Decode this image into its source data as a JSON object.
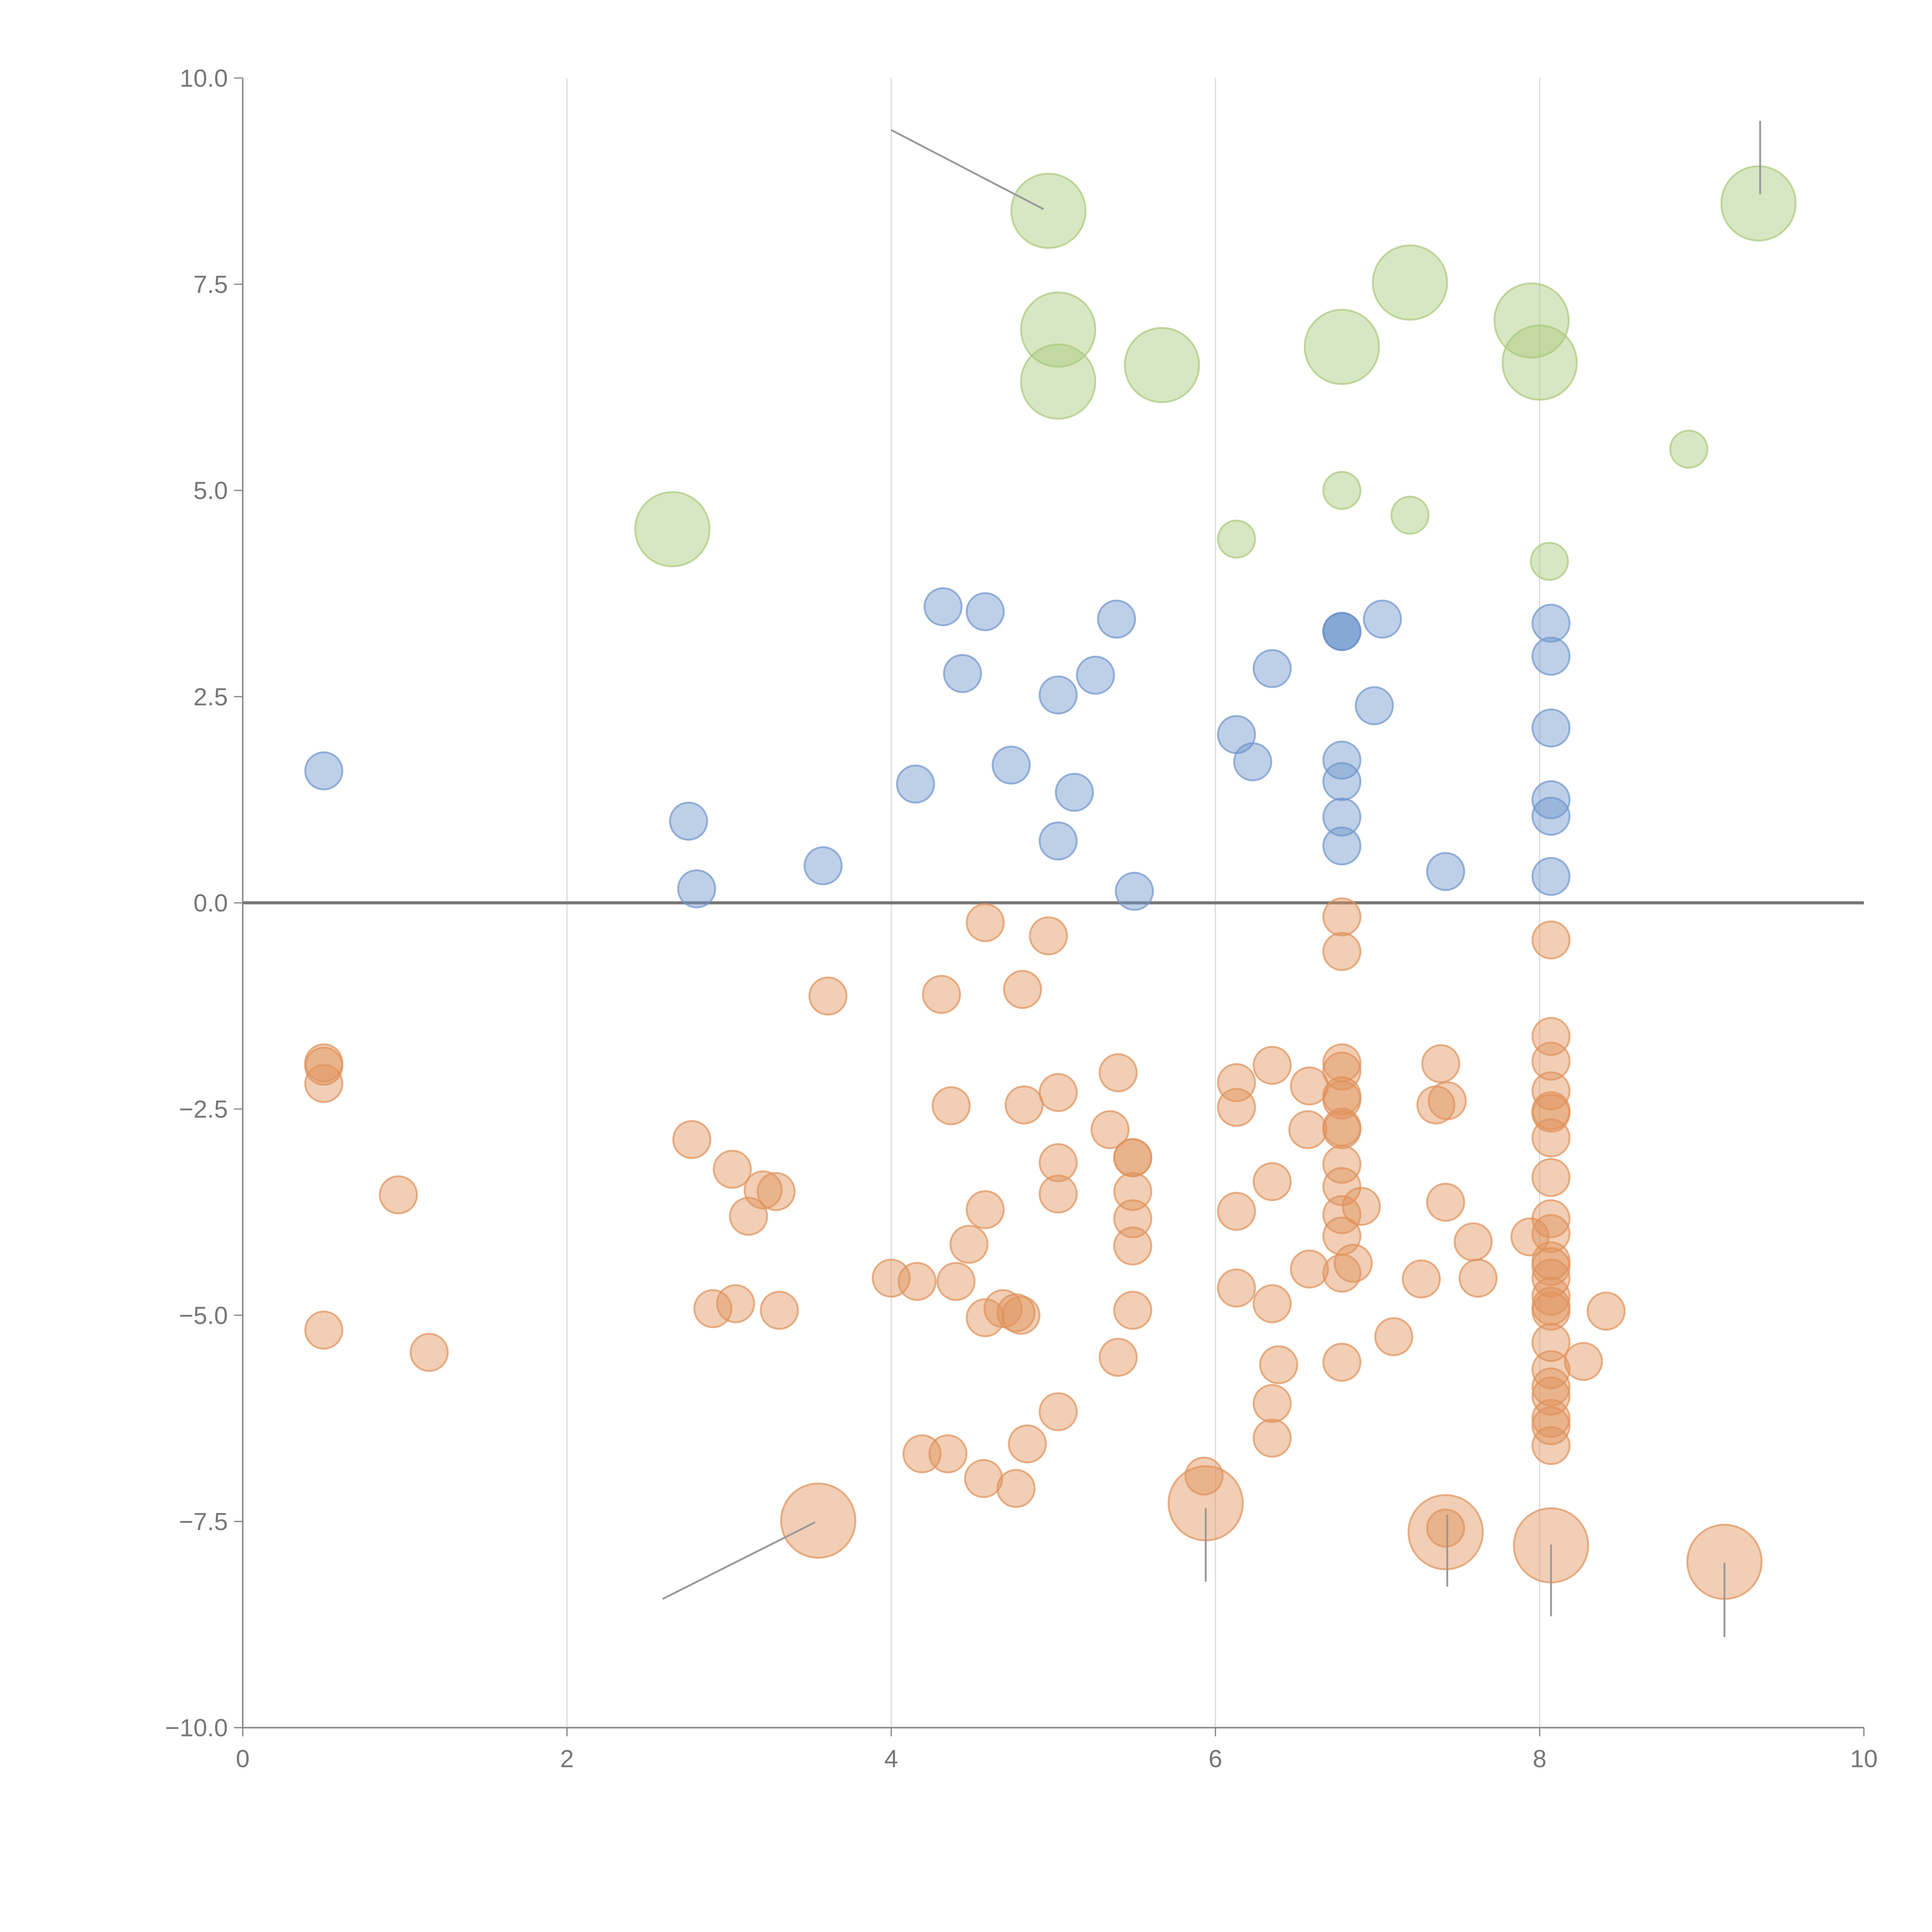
{
  "chart_data": {
    "type": "scatter",
    "title": "",
    "xlabel": "",
    "ylabel": "",
    "xlim": [
      0,
      10
    ],
    "ylim": [
      -10,
      10
    ],
    "xticks": [
      "0",
      "2",
      "4",
      "6",
      "8",
      "10"
    ],
    "yticks": [
      "10.0",
      "7.5",
      "5.0",
      "2.5",
      "0.0",
      "−2.5",
      "−5.0",
      "−7.5",
      "−10.0"
    ],
    "xtick_values": [
      0,
      2,
      4,
      6,
      8,
      10
    ],
    "ytick_values": [
      10,
      7.5,
      5,
      2.5,
      0,
      -2.5,
      -5,
      -7.5,
      -10
    ],
    "vertical_gridlines": [
      2,
      4,
      6,
      8
    ],
    "reference_line_y": 0,
    "series": [
      {
        "name": "green",
        "color": "#a9c97a",
        "points": [
          [
            4.97,
            8.39,
            4
          ],
          [
            5.03,
            6.95,
            4
          ],
          [
            5.03,
            6.32,
            4
          ],
          [
            5.67,
            6.52,
            4
          ],
          [
            6.78,
            6.74,
            4
          ],
          [
            7.2,
            7.52,
            4
          ],
          [
            7.95,
            7.06,
            4
          ],
          [
            8.0,
            6.55,
            4
          ],
          [
            9.35,
            8.48,
            4
          ],
          [
            2.65,
            4.53,
            4
          ],
          [
            8.92,
            5.5,
            1
          ],
          [
            6.78,
            5.0,
            1
          ],
          [
            7.2,
            4.7,
            1
          ],
          [
            6.13,
            4.41,
            1
          ],
          [
            8.06,
            4.14,
            1
          ]
        ]
      },
      {
        "name": "blue",
        "color": "#6f96cc",
        "points": [
          [
            0.5,
            1.6,
            1
          ],
          [
            2.75,
            0.99,
            1
          ],
          [
            2.8,
            0.17,
            1
          ],
          [
            3.58,
            0.45,
            1
          ],
          [
            4.15,
            1.44,
            1
          ],
          [
            4.32,
            3.59,
            1
          ],
          [
            4.44,
            2.78,
            1
          ],
          [
            4.58,
            3.53,
            1
          ],
          [
            4.74,
            1.67,
            1
          ],
          [
            5.03,
            2.52,
            1
          ],
          [
            5.03,
            0.75,
            1
          ],
          [
            5.13,
            1.34,
            1
          ],
          [
            5.26,
            2.76,
            1
          ],
          [
            5.39,
            3.44,
            1
          ],
          [
            5.5,
            0.14,
            1
          ],
          [
            6.13,
            2.04,
            1
          ],
          [
            6.23,
            1.71,
            1
          ],
          [
            6.35,
            2.84,
            1
          ],
          [
            6.78,
            3.29,
            1
          ],
          [
            6.78,
            3.29,
            1
          ],
          [
            6.78,
            3.29,
            1
          ],
          [
            6.78,
            1.73,
            1
          ],
          [
            6.78,
            1.47,
            1
          ],
          [
            6.78,
            1.04,
            1
          ],
          [
            6.78,
            0.69,
            1
          ],
          [
            6.98,
            2.39,
            1
          ],
          [
            7.03,
            3.44,
            1
          ],
          [
            7.42,
            0.38,
            1
          ],
          [
            8.07,
            3.39,
            1
          ],
          [
            8.07,
            2.99,
            1
          ],
          [
            8.07,
            2.12,
            1
          ],
          [
            8.07,
            1.25,
            1
          ],
          [
            8.07,
            1.05,
            1
          ],
          [
            8.07,
            0.32,
            1
          ]
        ]
      },
      {
        "name": "orange",
        "color": "#e0925a",
        "points": [
          [
            0.5,
            -1.94,
            1
          ],
          [
            0.5,
            -1.98,
            1
          ],
          [
            0.5,
            -2.19,
            1
          ],
          [
            0.5,
            -5.18,
            1
          ],
          [
            0.96,
            -3.54,
            1
          ],
          [
            1.15,
            -5.45,
            1
          ],
          [
            2.77,
            -2.87,
            1
          ],
          [
            2.9,
            -4.92,
            1
          ],
          [
            3.02,
            -3.23,
            1
          ],
          [
            3.04,
            -4.86,
            1
          ],
          [
            3.12,
            -3.8,
            1
          ],
          [
            3.21,
            -3.48,
            1
          ],
          [
            3.29,
            -3.5,
            1
          ],
          [
            3.31,
            -4.94,
            1
          ],
          [
            3.61,
            -1.13,
            1
          ],
          [
            4.0,
            -4.55,
            1
          ],
          [
            4.16,
            -4.59,
            1
          ],
          [
            4.19,
            -6.68,
            1
          ],
          [
            4.35,
            -6.68,
            1
          ],
          [
            4.31,
            -1.11,
            1
          ],
          [
            4.37,
            -2.46,
            1
          ],
          [
            4.4,
            -4.59,
            1
          ],
          [
            4.48,
            -4.14,
            1
          ],
          [
            4.58,
            -0.24,
            1
          ],
          [
            4.58,
            -3.72,
            1
          ],
          [
            4.58,
            -5.03,
            1
          ],
          [
            4.57,
            -6.98,
            1
          ],
          [
            4.69,
            -4.92,
            1
          ],
          [
            4.77,
            -4.97,
            1
          ],
          [
            4.8,
            -5.0,
            1
          ],
          [
            4.77,
            -7.1,
            1
          ],
          [
            4.81,
            -1.05,
            1
          ],
          [
            4.82,
            -2.45,
            1
          ],
          [
            4.84,
            -6.56,
            1
          ],
          [
            4.97,
            -0.4,
            1
          ],
          [
            5.03,
            -2.3,
            1
          ],
          [
            5.03,
            -3.15,
            1
          ],
          [
            5.03,
            -3.53,
            1
          ],
          [
            5.03,
            -6.17,
            1
          ],
          [
            5.35,
            -2.75,
            1
          ],
          [
            5.4,
            -2.06,
            1
          ],
          [
            5.4,
            -5.51,
            1
          ],
          [
            5.49,
            -3.09,
            1
          ],
          [
            5.49,
            -3.09,
            1
          ],
          [
            5.49,
            -3.5,
            1
          ],
          [
            5.49,
            -3.83,
            1
          ],
          [
            5.49,
            -4.16,
            1
          ],
          [
            5.49,
            -4.94,
            1
          ],
          [
            5.93,
            -6.95,
            1
          ],
          [
            6.13,
            -2.18,
            1
          ],
          [
            6.13,
            -2.48,
            1
          ],
          [
            6.13,
            -3.74,
            1
          ],
          [
            6.13,
            -4.67,
            1
          ],
          [
            6.35,
            -1.97,
            1
          ],
          [
            6.35,
            -3.38,
            1
          ],
          [
            6.35,
            -4.86,
            1
          ],
          [
            6.35,
            -6.07,
            1
          ],
          [
            6.35,
            -6.49,
            1
          ],
          [
            6.39,
            -5.6,
            1
          ],
          [
            6.57,
            -2.75,
            1
          ],
          [
            6.58,
            -2.22,
            1
          ],
          [
            6.58,
            -4.44,
            1
          ],
          [
            6.78,
            -0.17,
            1
          ],
          [
            6.78,
            -0.59,
            1
          ],
          [
            6.78,
            -1.94,
            1
          ],
          [
            6.78,
            -2.04,
            1
          ],
          [
            6.78,
            -2.34,
            1
          ],
          [
            6.78,
            -2.39,
            1
          ],
          [
            6.78,
            -2.72,
            1
          ],
          [
            6.78,
            -2.75,
            1
          ],
          [
            6.78,
            -3.17,
            1
          ],
          [
            6.78,
            -3.44,
            1
          ],
          [
            6.78,
            -3.78,
            1
          ],
          [
            6.78,
            -4.04,
            1
          ],
          [
            6.78,
            -4.49,
            1
          ],
          [
            6.78,
            -5.57,
            1
          ],
          [
            6.85,
            -4.37,
            1
          ],
          [
            6.9,
            -3.68,
            1
          ],
          [
            7.1,
            -5.26,
            1
          ],
          [
            7.27,
            -4.56,
            1
          ],
          [
            7.39,
            -1.95,
            1
          ],
          [
            7.36,
            -2.45,
            1
          ],
          [
            7.43,
            -2.4,
            1
          ],
          [
            7.42,
            -3.63,
            1
          ],
          [
            7.59,
            -4.11,
            1
          ],
          [
            7.62,
            -4.55,
            1
          ],
          [
            7.42,
            -7.58,
            1
          ],
          [
            7.94,
            -4.05,
            1
          ],
          [
            8.07,
            -0.45,
            1
          ],
          [
            8.07,
            -1.62,
            1
          ],
          [
            8.07,
            -1.92,
            1
          ],
          [
            8.07,
            -2.28,
            1
          ],
          [
            8.07,
            -2.52,
            1
          ],
          [
            8.07,
            -2.55,
            1
          ],
          [
            8.07,
            -2.85,
            1
          ],
          [
            8.07,
            -3.33,
            1
          ],
          [
            8.07,
            -3.83,
            1
          ],
          [
            8.07,
            -4.01,
            1
          ],
          [
            8.07,
            -4.34,
            1
          ],
          [
            8.07,
            -4.41,
            1
          ],
          [
            8.07,
            -4.55,
            1
          ],
          [
            8.07,
            -4.77,
            1
          ],
          [
            8.07,
            -4.89,
            1
          ],
          [
            8.07,
            -4.95,
            1
          ],
          [
            8.07,
            -5.33,
            1
          ],
          [
            8.07,
            -5.66,
            1
          ],
          [
            8.07,
            -5.87,
            1
          ],
          [
            8.07,
            -5.98,
            1
          ],
          [
            8.07,
            -6.25,
            1
          ],
          [
            8.07,
            -6.34,
            1
          ],
          [
            8.07,
            -6.58,
            1
          ],
          [
            8.27,
            -5.56,
            1
          ],
          [
            8.41,
            -4.95,
            1
          ],
          [
            3.55,
            -7.49,
            4
          ],
          [
            5.94,
            -7.28,
            4
          ],
          [
            7.42,
            -7.63,
            4
          ],
          [
            8.07,
            -7.79,
            4
          ],
          [
            9.14,
            -7.99,
            4
          ]
        ]
      }
    ],
    "annotation_lines": [
      [
        [
          4.0,
          9.37
        ],
        [
          4.94,
          8.41
        ]
      ],
      [
        [
          2.59,
          -8.44
        ],
        [
          3.53,
          -7.51
        ]
      ],
      [
        [
          5.94,
          -7.34
        ],
        [
          5.94,
          -8.23
        ]
      ],
      [
        [
          7.43,
          -7.42
        ],
        [
          7.43,
          -8.29
        ]
      ],
      [
        [
          8.07,
          -7.78
        ],
        [
          8.07,
          -8.65
        ]
      ],
      [
        [
          9.14,
          -8.0
        ],
        [
          9.14,
          -8.9
        ]
      ],
      [
        [
          9.36,
          9.48
        ],
        [
          9.36,
          8.59
        ]
      ]
    ]
  }
}
